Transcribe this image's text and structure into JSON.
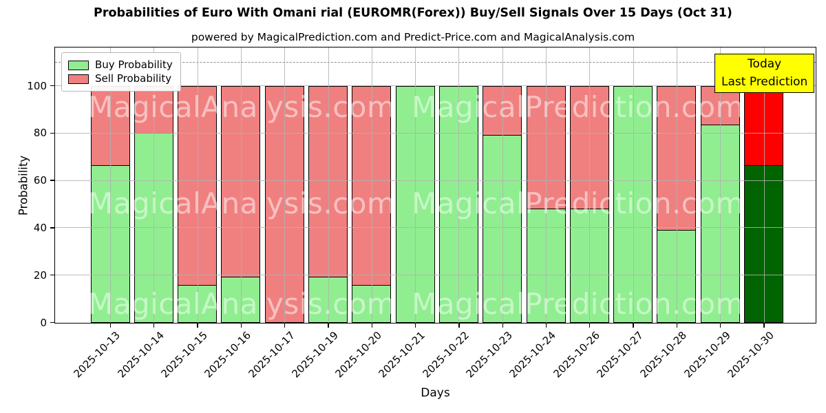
{
  "title": "Probabilities of Euro With Omani rial (EUROMR(Forex)) Buy/Sell Signals Over 15 Days (Oct 31)",
  "subtitle": "powered by MagicalPrediction.com and Predict-Price.com and MagicalAnalysis.com",
  "xlabel": "Days",
  "ylabel": "Probability",
  "legend": {
    "buy": "Buy Probability",
    "sell": "Sell Probability"
  },
  "annotation": {
    "line1": "Today",
    "line2": "Last Prediction"
  },
  "watermarks": {
    "left_text": "MagicalAnalysis.com",
    "right_text": "MagicalPrediction.com"
  },
  "colors": {
    "buy": "#90EE90",
    "sell": "#F08080",
    "today_buy": "#006400",
    "today_sell": "#FF0000",
    "annotation_bg": "#FFFF00",
    "grid": "#B0B0B0",
    "edge": "#000000"
  },
  "chart_data": {
    "type": "bar",
    "stacked": true,
    "grid": true,
    "legend_position": "upper left",
    "title": "Probabilities of Euro With Omani rial (EUROMR(Forex)) Buy/Sell Signals Over 15 Days (Oct 31)",
    "xlabel": "Days",
    "ylabel": "Probability",
    "ylim": [
      0,
      116
    ],
    "yticks": [
      0,
      20,
      40,
      60,
      80,
      100
    ],
    "dashed_line_y": 110,
    "today_index": 15,
    "categories": [
      "2025-10-13",
      "2025-10-14",
      "2025-10-15",
      "2025-10-16",
      "2025-10-17",
      "2025-10-19",
      "2025-10-20",
      "2025-10-21",
      "2025-10-22",
      "2025-10-23",
      "2025-10-24",
      "2025-10-26",
      "2025-10-27",
      "2025-10-28",
      "2025-10-29",
      "2025-10-30"
    ],
    "series": [
      {
        "name": "Buy Probability",
        "values": [
          66.67,
          80.5,
          16,
          19.5,
          0,
          19.5,
          16,
          100,
          100,
          79.5,
          48.5,
          48.5,
          100,
          39.5,
          84,
          66.67
        ]
      },
      {
        "name": "Sell Probability",
        "values": [
          33.33,
          19.5,
          84,
          80.5,
          100,
          80.5,
          84,
          0,
          0,
          20.5,
          51.5,
          51.5,
          0,
          60.5,
          16,
          33.33
        ]
      }
    ]
  }
}
